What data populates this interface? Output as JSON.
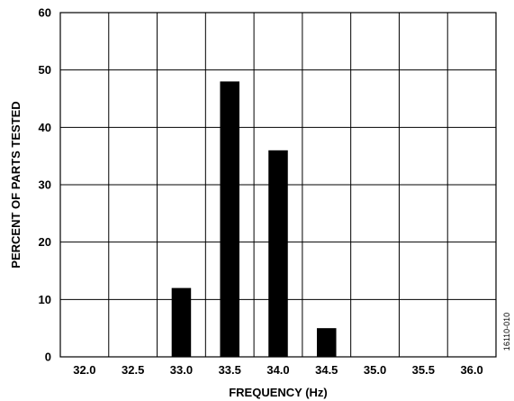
{
  "chart_data": {
    "type": "bar",
    "categories": [
      "32.0",
      "32.5",
      "33.0",
      "33.5",
      "34.0",
      "34.5",
      "35.0",
      "35.5",
      "36.0"
    ],
    "values": [
      0,
      0,
      12,
      48,
      36,
      5,
      0,
      0,
      0
    ],
    "xlabel": "FREQUENCY (Hz)",
    "ylabel": "PERCENT OF PARTS TESTED",
    "ylim": [
      0,
      60
    ],
    "yticks": [
      "0",
      "10",
      "20",
      "30",
      "40",
      "50",
      "60"
    ],
    "grid": true,
    "bar_color": "#000000"
  },
  "figure_code": "16110-010"
}
